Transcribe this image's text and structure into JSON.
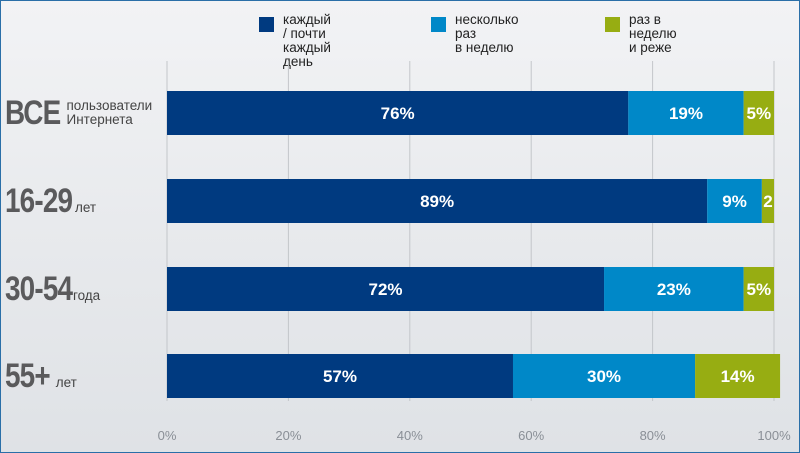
{
  "chart_data": {
    "type": "bar",
    "orientation": "horizontal",
    "stacked": true,
    "legend": [
      {
        "label": "каждый / почти\nкаждый день",
        "color": "#003a80"
      },
      {
        "label": "несколько раз\nв неделю",
        "color": "#0088c8"
      },
      {
        "label": "раз в неделю\nи реже",
        "color": "#97ad12"
      }
    ],
    "categories": [
      {
        "big": "ВСЕ",
        "small": "пользователи\nИнтернета"
      },
      {
        "big": "16-29",
        "small": "лет"
      },
      {
        "big": "30-54",
        "small": "года"
      },
      {
        "big": "55+",
        "small": "лет"
      }
    ],
    "series": [
      {
        "name": "каждый / почти каждый день",
        "values": [
          76,
          89,
          72,
          57
        ],
        "labels": [
          "76%",
          "89%",
          "72%",
          "57%"
        ]
      },
      {
        "name": "несколько раз в неделю",
        "values": [
          19,
          9,
          23,
          30
        ],
        "labels": [
          "19%",
          "9%",
          "23%",
          "30%"
        ]
      },
      {
        "name": "раз в неделю и реже",
        "values": [
          5,
          2,
          5,
          14
        ],
        "labels": [
          "5%",
          "2",
          "5%",
          "14%"
        ]
      }
    ],
    "xlim": [
      0,
      100
    ],
    "xticks": [
      "0%",
      "20%",
      "40%",
      "60%",
      "80%",
      "100%"
    ],
    "grid": true
  }
}
